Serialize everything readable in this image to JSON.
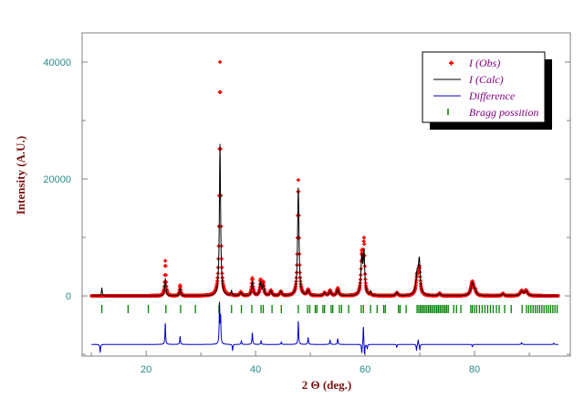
{
  "chart_data": {
    "type": "scatter",
    "xlabel": "2 Θ (deg.)",
    "ylabel": "Intensity (A.U.)",
    "xlim": [
      8.3,
      97.5
    ],
    "ylim": [
      -10300,
      45000
    ],
    "xticks": [
      20,
      40,
      60,
      80
    ],
    "xtick_labels": [
      "20",
      "40",
      "60",
      "80"
    ],
    "xminor": [
      10,
      30,
      50,
      70,
      90
    ],
    "yticks": [
      0,
      20000,
      40000
    ],
    "ytick_labels": [
      "0",
      "20000",
      "40000"
    ],
    "yminor": [
      -10000,
      10000,
      30000
    ],
    "legend_position": "top-right",
    "legend": [
      {
        "label": "I (Obs)",
        "color": "#ff0000",
        "marker": "plus"
      },
      {
        "label": "I (Calc)",
        "color": "#000000",
        "marker": "line"
      },
      {
        "label": "Difference",
        "color": "#0000cc",
        "marker": "line"
      },
      {
        "label": "Bragg possition",
        "color": "#008000",
        "marker": "tick"
      }
    ],
    "range": [
      10,
      95.3
    ],
    "step": 0.05,
    "background": 0,
    "peaks": [
      {
        "pos": 11.9,
        "obs": 0,
        "calc": 1400,
        "w": 0.08
      },
      {
        "pos": 23.5,
        "obs": 6000,
        "calc": 3000,
        "w": 0.12
      },
      {
        "pos": 26.2,
        "obs": 1800,
        "calc": 1200,
        "w": 0.12
      },
      {
        "pos": 33.5,
        "obs": 40000,
        "calc": 26000,
        "w": 0.13
      },
      {
        "pos": 35.6,
        "obs": 200,
        "calc": 900,
        "w": 0.1
      },
      {
        "pos": 37.3,
        "obs": 600,
        "calc": 500,
        "w": 0.2
      },
      {
        "pos": 39.4,
        "obs": 3000,
        "calc": 2400,
        "w": 0.15
      },
      {
        "pos": 40.9,
        "obs": 2600,
        "calc": 2300,
        "w": 0.15
      },
      {
        "pos": 41.4,
        "obs": 2200,
        "calc": 2000,
        "w": 0.15
      },
      {
        "pos": 42.8,
        "obs": 900,
        "calc": 800,
        "w": 0.2
      },
      {
        "pos": 44.6,
        "obs": 700,
        "calc": 700,
        "w": 0.2
      },
      {
        "pos": 47.8,
        "obs": 19800,
        "calc": 18500,
        "w": 0.15
      },
      {
        "pos": 49.6,
        "obs": 1000,
        "calc": 900,
        "w": 0.2
      },
      {
        "pos": 52.6,
        "obs": 500,
        "calc": 500,
        "w": 0.2
      },
      {
        "pos": 53.6,
        "obs": 900,
        "calc": 800,
        "w": 0.2
      },
      {
        "pos": 55.0,
        "obs": 1300,
        "calc": 1100,
        "w": 0.2
      },
      {
        "pos": 59.4,
        "obs": 6800,
        "calc": 6500,
        "w": 0.18
      },
      {
        "pos": 59.8,
        "obs": 8800,
        "calc": 7000,
        "w": 0.15
      },
      {
        "pos": 61.0,
        "obs": 300,
        "calc": 700,
        "w": 0.1
      },
      {
        "pos": 65.8,
        "obs": 500,
        "calc": 600,
        "w": 0.2
      },
      {
        "pos": 69.5,
        "obs": 3000,
        "calc": 3500,
        "w": 0.25
      },
      {
        "pos": 69.9,
        "obs": 4300,
        "calc": 5700,
        "w": 0.2
      },
      {
        "pos": 73.6,
        "obs": 400,
        "calc": 400,
        "w": 0.2
      },
      {
        "pos": 79.6,
        "obs": 2400,
        "calc": 2200,
        "w": 0.3
      },
      {
        "pos": 80.1,
        "obs": 600,
        "calc": 700,
        "w": 0.2
      },
      {
        "pos": 85.2,
        "obs": 400,
        "calc": 400,
        "w": 0.2
      },
      {
        "pos": 88.6,
        "obs": 800,
        "calc": 700,
        "w": 0.3
      },
      {
        "pos": 89.4,
        "obs": 900,
        "calc": 800,
        "w": 0.3
      }
    ],
    "difference": {
      "offset": -8300,
      "features": [
        {
          "pos": 11.6,
          "amp": -1400
        },
        {
          "pos": 23.5,
          "amp": 3600
        },
        {
          "pos": 26.2,
          "amp": 1400
        },
        {
          "pos": 33.4,
          "amp": 6800
        },
        {
          "pos": 33.6,
          "amp": 4500
        },
        {
          "pos": 35.8,
          "amp": -1000
        },
        {
          "pos": 37.4,
          "amp": 600
        },
        {
          "pos": 39.4,
          "amp": 2000
        },
        {
          "pos": 41.0,
          "amp": 600
        },
        {
          "pos": 44.7,
          "amp": 400
        },
        {
          "pos": 47.8,
          "amp": 4000
        },
        {
          "pos": 49.6,
          "amp": 1200
        },
        {
          "pos": 53.6,
          "amp": 700
        },
        {
          "pos": 55.0,
          "amp": 1000
        },
        {
          "pos": 59.4,
          "amp": -1600
        },
        {
          "pos": 59.7,
          "amp": 3300
        },
        {
          "pos": 59.9,
          "amp": -2000
        },
        {
          "pos": 60.4,
          "amp": -800
        },
        {
          "pos": 65.8,
          "amp": -500
        },
        {
          "pos": 69.4,
          "amp": -1000
        },
        {
          "pos": 69.7,
          "amp": 800
        },
        {
          "pos": 70.0,
          "amp": -900
        },
        {
          "pos": 79.6,
          "amp": -400
        },
        {
          "pos": 88.6,
          "amp": 300
        },
        {
          "pos": 94.5,
          "amp": 200
        }
      ]
    },
    "bragg_positions": [
      11.9,
      16.7,
      20.4,
      23.6,
      26.3,
      29.0,
      33.3,
      35.6,
      37.4,
      39.3,
      41.0,
      41.4,
      43.0,
      44.7,
      47.8,
      49.5,
      49.9,
      50.9,
      51.2,
      52.3,
      52.6,
      53.8,
      54.1,
      55.3,
      55.7,
      57.0,
      59.3,
      59.7,
      61.0,
      62.2,
      63.4,
      63.7,
      66.1,
      66.4,
      67.5,
      69.5,
      69.8,
      70.1,
      70.4,
      70.7,
      71.0,
      71.3,
      71.6,
      71.9,
      72.2,
      72.5,
      72.8,
      73.1,
      73.4,
      73.7,
      74.0,
      74.3,
      74.6,
      74.9,
      75.2,
      76.2,
      76.7,
      77.5,
      79.3,
      79.6,
      80.0,
      80.4,
      80.9,
      81.4,
      81.9,
      82.4,
      82.9,
      83.4,
      84.0,
      84.5,
      85.5,
      86.7,
      88.7,
      89.5,
      89.9,
      90.3,
      90.7,
      91.1,
      91.5,
      91.9,
      92.3,
      92.7,
      93.1,
      93.5,
      93.9,
      94.3,
      94.7,
      95.1
    ]
  }
}
